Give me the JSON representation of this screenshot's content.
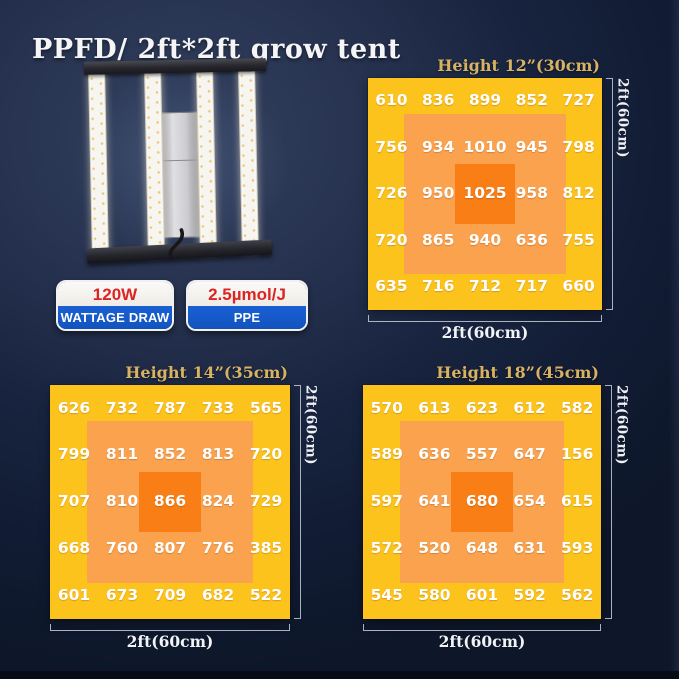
{
  "title": "PPFD/ 2ft*2ft grow tent",
  "product": {
    "image_name": "4-bar-led-grow-light",
    "badges": [
      {
        "value": "120W",
        "label": "WATTAGE DRAW"
      },
      {
        "value": "2.5µmol/J",
        "label": "PPE"
      }
    ]
  },
  "colors": {
    "zone_outer": "#fdc31d",
    "zone_mid": "#faa24e",
    "zone_center": "#f87e15",
    "gold": "#d8b263",
    "badge_red": "#dd2422",
    "badge_blue": "#1a60d4",
    "bracket": "#c7cdd9"
  },
  "chart_data": [
    {
      "type": "heatmap",
      "title": "Height 12”(30cm)",
      "xlabel": "2ft(60cm)",
      "ylabel": "2ft(60cm)",
      "rows": [
        [
          610,
          836,
          899,
          852,
          727
        ],
        [
          756,
          934,
          1010,
          945,
          798
        ],
        [
          726,
          950,
          1025,
          958,
          812
        ],
        [
          720,
          865,
          940,
          636,
          755
        ],
        [
          635,
          716,
          712,
          717,
          660
        ]
      ]
    },
    {
      "type": "heatmap",
      "title": "Height 14”(35cm)",
      "xlabel": "2ft(60cm)",
      "ylabel": "2ft(60cm)",
      "rows": [
        [
          626,
          732,
          787,
          733,
          565
        ],
        [
          799,
          811,
          852,
          813,
          720
        ],
        [
          707,
          810,
          866,
          824,
          729
        ],
        [
          668,
          760,
          807,
          776,
          385
        ],
        [
          601,
          673,
          709,
          682,
          522
        ]
      ]
    },
    {
      "type": "heatmap",
      "title": "Height 18”(45cm)",
      "xlabel": "2ft(60cm)",
      "ylabel": "2ft(60cm)",
      "rows": [
        [
          570,
          613,
          623,
          612,
          582
        ],
        [
          589,
          636,
          557,
          647,
          156
        ],
        [
          597,
          641,
          680,
          654,
          615
        ],
        [
          572,
          520,
          648,
          631,
          593
        ],
        [
          545,
          580,
          601,
          592,
          562
        ]
      ]
    }
  ]
}
